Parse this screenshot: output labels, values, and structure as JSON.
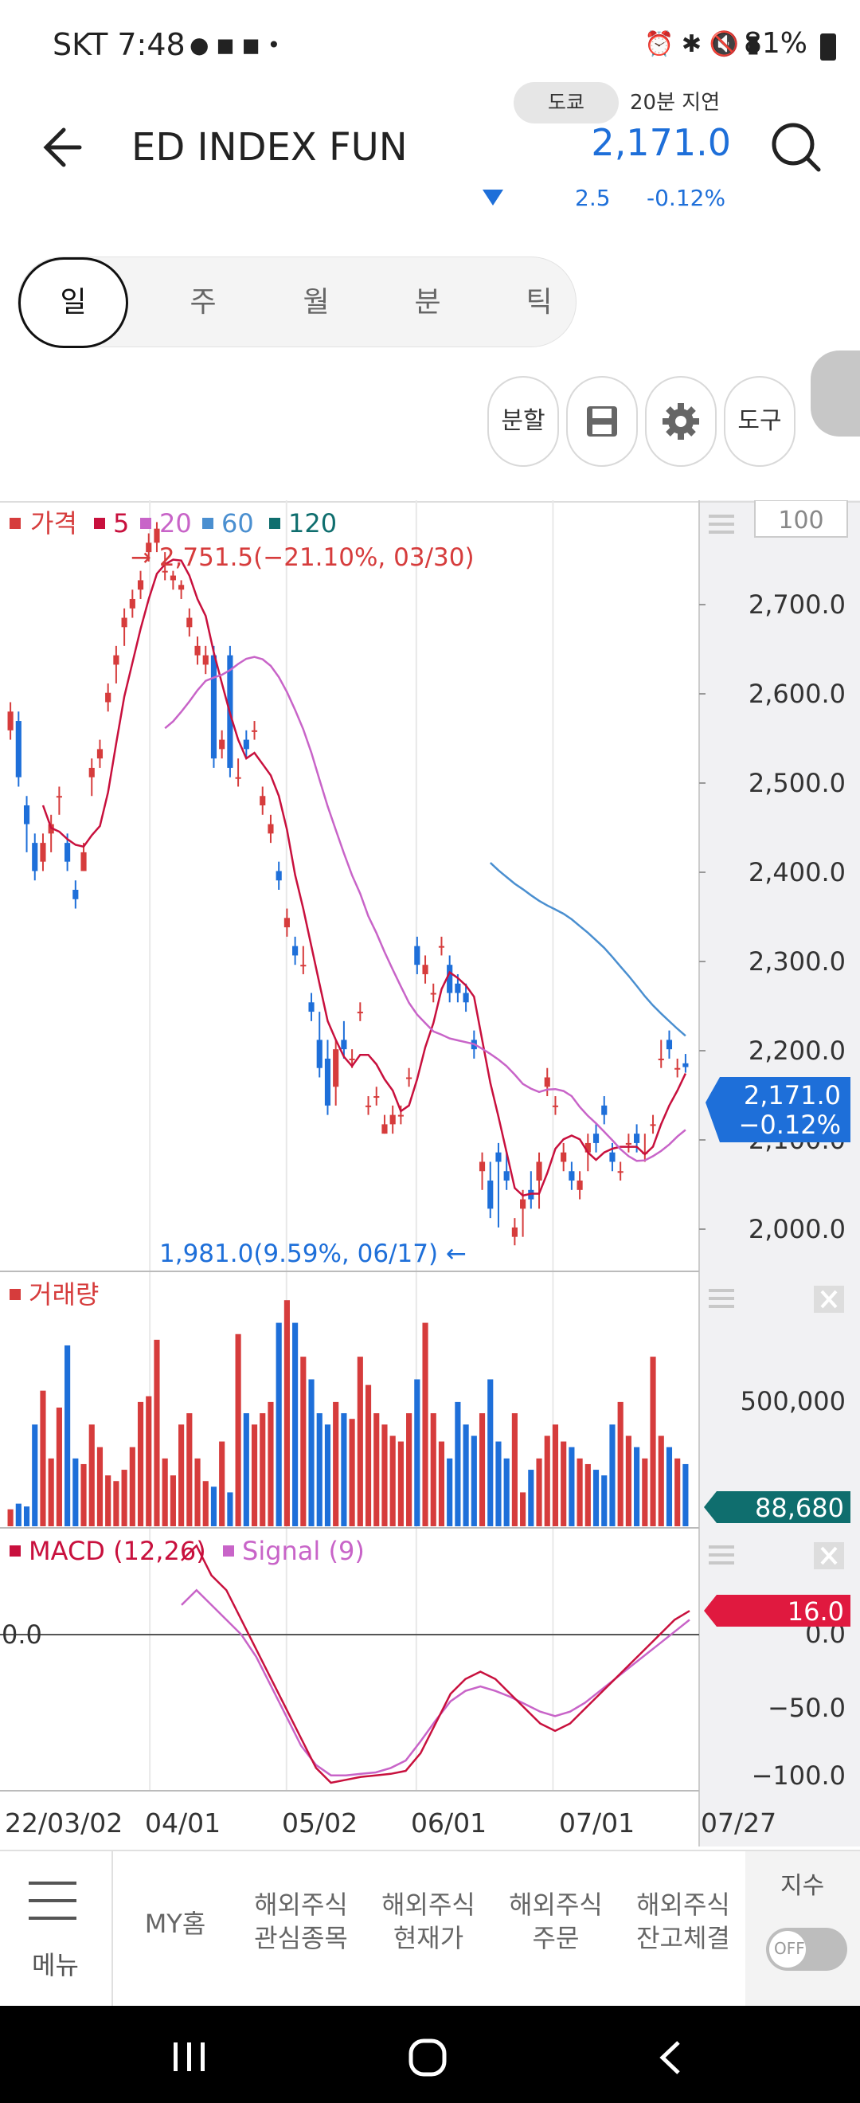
{
  "status_bar": {
    "carrier_time": "SKT 7:48",
    "battery": "81%"
  },
  "header": {
    "title": "ED INDEX FUNI",
    "exchange": "도쿄",
    "delay": "20분 지연",
    "price": "2,171.0",
    "change": "2.5",
    "change_pct": "-0.12%"
  },
  "period_tabs": [
    "일",
    "주",
    "월",
    "분",
    "틱"
  ],
  "tools": {
    "split": "분할",
    "tools": "도구"
  },
  "price_chart": {
    "legend": {
      "price": "가격",
      "ma5": "5",
      "ma20": "20",
      "ma60": "60",
      "ma120": "120"
    },
    "zoom_box": "100",
    "high_label": "→ 2,751.5(−21.10%, 03/30)",
    "low_label": "1,981.0(9.59%, 06/17) ←",
    "current_price": "2,171.0",
    "current_pct": "−0.12%",
    "y_ticks": [
      "2,700.0",
      "2,600.0",
      "2,500.0",
      "2,400.0",
      "2,300.0",
      "2,200.0",
      "2,100.0",
      "2,000.0"
    ]
  },
  "volume_chart": {
    "label": "거래량",
    "y_tick": "500,000",
    "current": "88,680"
  },
  "macd_chart": {
    "label": "MACD (12,26)",
    "signal_label": "Signal (9)",
    "current": "16.0",
    "zero_label": "0.0",
    "y_ticks": [
      "0.0",
      "−50.0",
      "−100.0"
    ]
  },
  "x_axis": [
    "22/03/02",
    "04/01",
    "05/02",
    "06/01",
    "07/01",
    "07/27"
  ],
  "bottom_nav": {
    "menu": "메뉴",
    "items": [
      "MY홈",
      "해외주식\n관심종목",
      "해외주식\n현재가",
      "해외주식\n주문",
      "해외주식\n잔고체결"
    ],
    "index_label": "지수",
    "toggle": "OFF"
  },
  "colors": {
    "up": "#d63c3c",
    "down": "#1e6fd9",
    "ma5": "#c8103d",
    "ma20": "#c864c8",
    "ma60": "#4a8fd0",
    "ma120": "#0f6e6e"
  },
  "chart_data": {
    "type": "candlestick",
    "x_range": [
      "2022-03-02",
      "2022-07-27"
    ],
    "ylim": [
      1960,
      2760
    ],
    "high": {
      "value": 2751.5,
      "date": "03/30"
    },
    "low": {
      "value": 1981.0,
      "date": "06/17"
    },
    "candles": [
      [
        2530,
        2560,
        2520,
        2550
      ],
      [
        2540,
        2550,
        2470,
        2480
      ],
      [
        2450,
        2460,
        2400,
        2430
      ],
      [
        2410,
        2420,
        2370,
        2380
      ],
      [
        2390,
        2420,
        2380,
        2410
      ],
      [
        2420,
        2440,
        2400,
        2430
      ],
      [
        2460,
        2470,
        2440,
        2460
      ],
      [
        2410,
        2420,
        2380,
        2390
      ],
      [
        2360,
        2370,
        2340,
        2350
      ],
      [
        2380,
        2410,
        2380,
        2400
      ],
      [
        2480,
        2500,
        2460,
        2490
      ],
      [
        2500,
        2520,
        2490,
        2510
      ],
      [
        2560,
        2580,
        2550,
        2570
      ],
      [
        2600,
        2620,
        2580,
        2610
      ],
      [
        2640,
        2660,
        2620,
        2650
      ],
      [
        2660,
        2680,
        2650,
        2670
      ],
      [
        2680,
        2700,
        2670,
        2690
      ],
      [
        2720,
        2740,
        2710,
        2730
      ],
      [
        2730,
        2752,
        2720,
        2745
      ],
      [
        2700,
        2720,
        2690,
        2700
      ],
      [
        2690,
        2700,
        2680,
        2695
      ],
      [
        2680,
        2690,
        2670,
        2685
      ],
      [
        2640,
        2660,
        2630,
        2650
      ],
      [
        2610,
        2630,
        2600,
        2620
      ],
      [
        2600,
        2620,
        2590,
        2610
      ],
      [
        2610,
        2620,
        2490,
        2500
      ],
      [
        2510,
        2530,
        2500,
        2520
      ],
      [
        2610,
        2620,
        2480,
        2490
      ],
      [
        2480,
        2500,
        2470,
        2480
      ],
      [
        2520,
        2530,
        2500,
        2510
      ],
      [
        2530,
        2540,
        2520,
        2530
      ],
      [
        2450,
        2470,
        2440,
        2460
      ],
      [
        2420,
        2440,
        2410,
        2430
      ],
      [
        2380,
        2390,
        2360,
        2370
      ],
      [
        2320,
        2340,
        2310,
        2330
      ],
      [
        2300,
        2310,
        2280,
        2290
      ],
      [
        2280,
        2300,
        2270,
        2280
      ],
      [
        2240,
        2250,
        2220,
        2230
      ],
      [
        2200,
        2230,
        2160,
        2170
      ],
      [
        2180,
        2200,
        2120,
        2130
      ],
      [
        2150,
        2200,
        2130,
        2190
      ],
      [
        2200,
        2220,
        2180,
        2190
      ],
      [
        2180,
        2190,
        2170,
        2180
      ],
      [
        2230,
        2240,
        2220,
        2230
      ],
      [
        2130,
        2140,
        2120,
        2130
      ],
      [
        2140,
        2150,
        2130,
        2140
      ],
      [
        2100,
        2120,
        2100,
        2110
      ],
      [
        2110,
        2130,
        2100,
        2120
      ],
      [
        2120,
        2130,
        2110,
        2120
      ],
      [
        2160,
        2170,
        2150,
        2160
      ],
      [
        2300,
        2310,
        2270,
        2280
      ],
      [
        2270,
        2290,
        2260,
        2280
      ],
      [
        2250,
        2260,
        2240,
        2250
      ],
      [
        2300,
        2310,
        2290,
        2300
      ],
      [
        2280,
        2290,
        2240,
        2250
      ],
      [
        2260,
        2270,
        2240,
        2250
      ],
      [
        2250,
        2260,
        2230,
        2240
      ],
      [
        2200,
        2210,
        2180,
        2190
      ],
      [
        2060,
        2080,
        2040,
        2070
      ],
      [
        2050,
        2070,
        2010,
        2020
      ],
      [
        2080,
        2090,
        2000,
        2070
      ],
      [
        2060,
        2080,
        2040,
        2050
      ],
      [
        1990,
        2010,
        1981,
        2000
      ],
      [
        2020,
        2040,
        1990,
        2030
      ],
      [
        2040,
        2060,
        2020,
        2030
      ],
      [
        2050,
        2080,
        2020,
        2070
      ],
      [
        2150,
        2170,
        2140,
        2160
      ],
      [
        2130,
        2140,
        2120,
        2130
      ],
      [
        2070,
        2090,
        2060,
        2080
      ],
      [
        2060,
        2070,
        2040,
        2050
      ],
      [
        2040,
        2060,
        2030,
        2050
      ],
      [
        2080,
        2100,
        2060,
        2090
      ],
      [
        2100,
        2110,
        2080,
        2090
      ],
      [
        2130,
        2140,
        2110,
        2120
      ],
      [
        2080,
        2090,
        2060,
        2070
      ],
      [
        2060,
        2070,
        2050,
        2060
      ],
      [
        2090,
        2100,
        2080,
        2090
      ],
      [
        2100,
        2110,
        2080,
        2090
      ],
      [
        2080,
        2100,
        2070,
        2080
      ],
      [
        2110,
        2120,
        2100,
        2110
      ],
      [
        2180,
        2200,
        2170,
        2180
      ],
      [
        2200,
        2210,
        2180,
        2190
      ],
      [
        2170,
        2180,
        2160,
        2170
      ],
      [
        2175,
        2185,
        2165,
        2171
      ]
    ],
    "volume": [
      30,
      40,
      35,
      180,
      240,
      120,
      210,
      320,
      120,
      110,
      180,
      140,
      90,
      80,
      100,
      140,
      220,
      230,
      330,
      120,
      90,
      180,
      200,
      120,
      80,
      70,
      150,
      60,
      340,
      200,
      180,
      200,
      220,
      360,
      400,
      360,
      300,
      260,
      200,
      180,
      220,
      200,
      190,
      300,
      250,
      200,
      180,
      160,
      150,
      200,
      260,
      360,
      200,
      150,
      120,
      220,
      180,
      160,
      200,
      260,
      150,
      120,
      200,
      60,
      100,
      120,
      160,
      180,
      150,
      140,
      120,
      110,
      100,
      90,
      180,
      220,
      160,
      140,
      120,
      300,
      160,
      140,
      120,
      110
    ],
    "macd": [
      50,
      60,
      40,
      30,
      10,
      -10,
      -30,
      -50,
      -70,
      -90,
      -100,
      -98,
      -96,
      -95,
      -94,
      -92,
      -80,
      -60,
      -40,
      -30,
      -25,
      -30,
      -40,
      -50,
      -60,
      -65,
      -60,
      -50,
      -40,
      -30,
      -20,
      -10,
      0,
      10,
      16
    ],
    "signal": [
      20,
      30,
      20,
      10,
      0,
      -15,
      -35,
      -55,
      -75,
      -88,
      -95,
      -95,
      -94,
      -93,
      -90,
      -85,
      -72,
      -58,
      -45,
      -38,
      -35,
      -38,
      -42,
      -47,
      -52,
      -55,
      -52,
      -46,
      -38,
      -30,
      -22,
      -14,
      -6,
      2,
      10
    ]
  }
}
